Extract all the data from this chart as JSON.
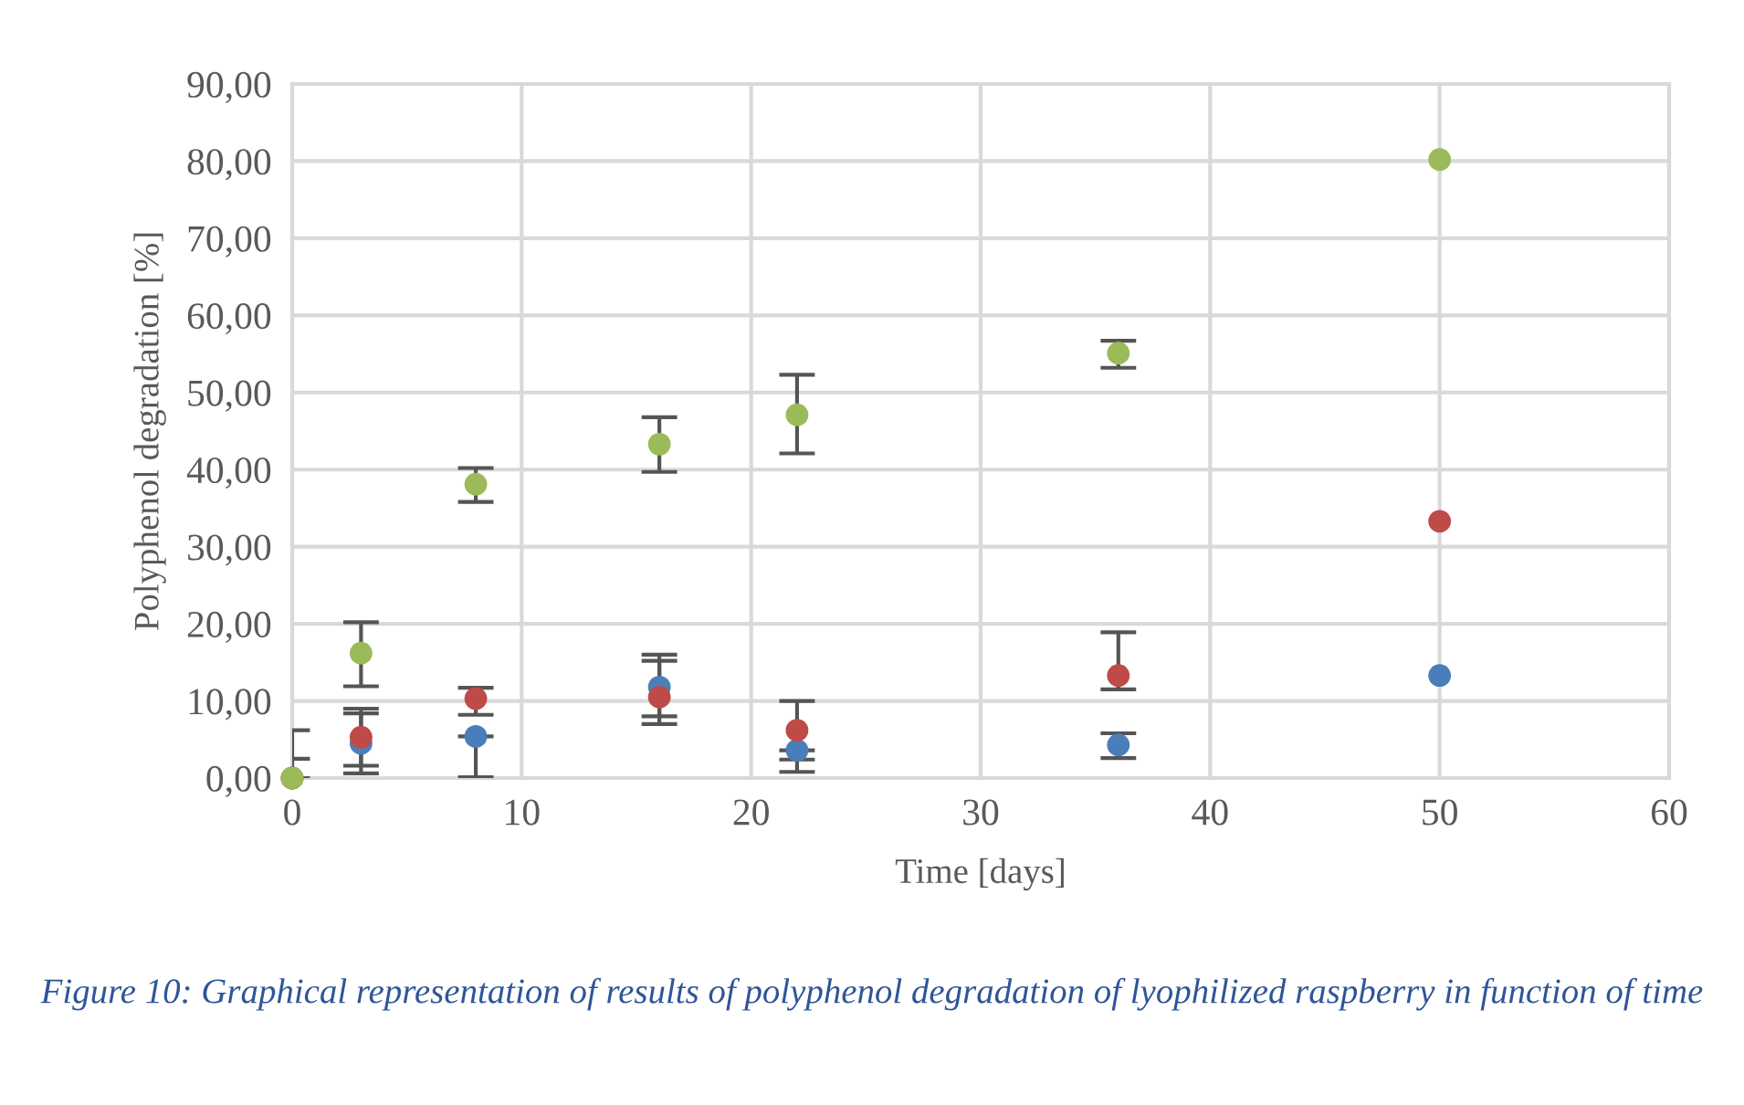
{
  "chart_data": {
    "type": "scatter",
    "xlabel": "Time [days]",
    "ylabel": "Polyphenol degradation [%]",
    "x": [
      0,
      3,
      8,
      16,
      22,
      36,
      50
    ],
    "series": [
      {
        "color": "#4a7ebb",
        "values": [
          0,
          4.5,
          5.4,
          11.8,
          3.6,
          4.3,
          13.3
        ],
        "errors": [
          2.5,
          [
            0.6,
            8.4
          ],
          [
            0.1,
            5.4
          ],
          [
            7.0,
            16.0
          ],
          [
            0.8,
            3.6
          ],
          [
            2.6,
            5.8
          ],
          null
        ]
      },
      {
        "color": "#be4b48",
        "values": [
          0,
          5.3,
          10.3,
          10.5,
          6.2,
          13.3,
          33.3
        ],
        "errors": [
          [
            0,
            6.2
          ],
          [
            1.6,
            9.0
          ],
          [
            8.2,
            11.7
          ],
          [
            8.0,
            15.2
          ],
          [
            2.4,
            10.0
          ],
          [
            11.5,
            18.9
          ],
          null
        ]
      },
      {
        "color": "#9bbb59",
        "values": [
          0,
          16.2,
          38.1,
          43.3,
          47.1,
          55.1,
          80.2
        ],
        "errors": [
          null,
          [
            11.9,
            20.2
          ],
          [
            35.8,
            40.2
          ],
          [
            39.7,
            46.8
          ],
          [
            42.1,
            52.3
          ],
          [
            53.2,
            56.7
          ],
          null
        ]
      }
    ],
    "xlim": [
      0,
      60
    ],
    "xticks": [
      0,
      10,
      20,
      30,
      40,
      50,
      60
    ],
    "ylim": [
      0,
      90
    ],
    "yticks": [
      {
        "value": 0,
        "label": "0,00"
      },
      {
        "value": 10,
        "label": "10,00"
      },
      {
        "value": 20,
        "label": "20,00"
      },
      {
        "value": 30,
        "label": "30,00"
      },
      {
        "value": 40,
        "label": "40,00"
      },
      {
        "value": 50,
        "label": "50,00"
      },
      {
        "value": 60,
        "label": "60,00"
      },
      {
        "value": 70,
        "label": "70,00"
      },
      {
        "value": 80,
        "label": "80,00"
      },
      {
        "value": 90,
        "label": "90,00"
      }
    ],
    "grid": true,
    "marker": "circle",
    "annotations": [
      "Figure 10: Graphical representation of results of polyphenol degradation of lyophilized raspberry in function of time"
    ]
  }
}
